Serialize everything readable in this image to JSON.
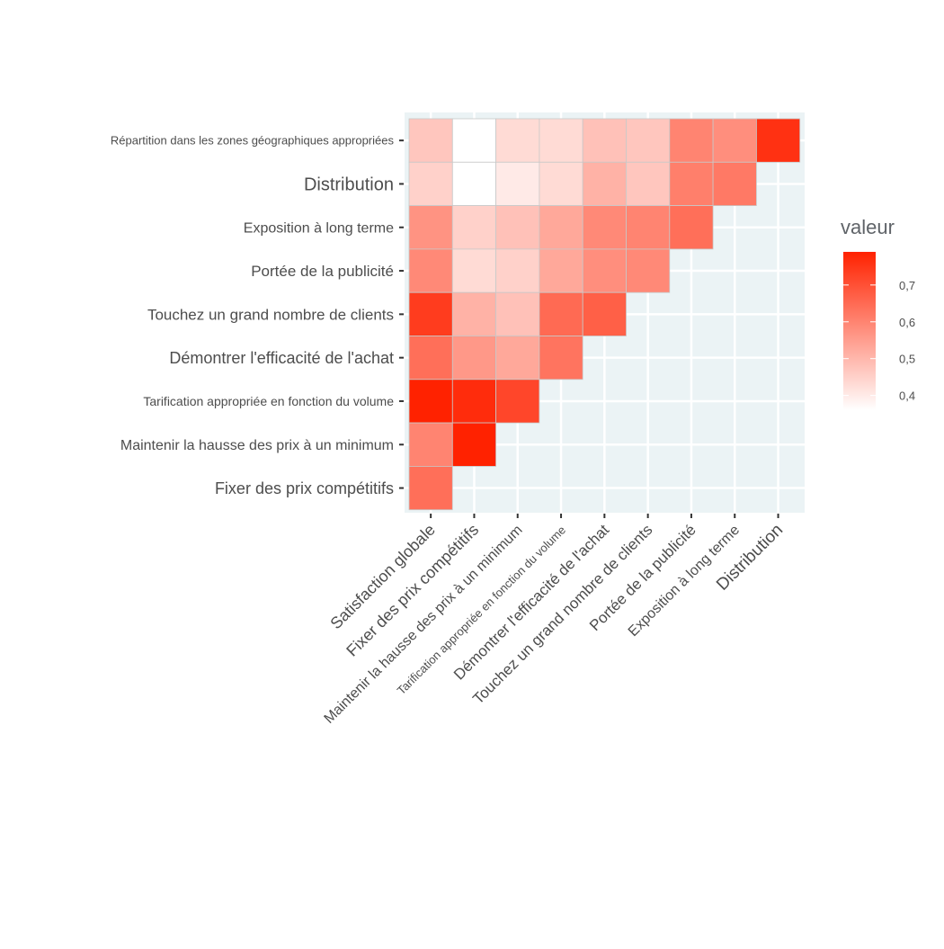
{
  "chart_data": {
    "type": "heatmap",
    "title": "",
    "xlabel": "",
    "ylabel": "",
    "x_categories": [
      "Satisfaction globale",
      "Fixer des prix compétitifs",
      "Maintenir la hausse des prix à un minimum",
      "Tarification appropriée en fonction du volume",
      "Démontrer l'efficacité de l'achat",
      "Touchez un grand nombre de clients",
      "Portée de la publicité",
      "Exposition à long terme",
      "Distribution"
    ],
    "y_categories": [
      "Répartition dans les zones géographiques appropriées",
      "Distribution",
      "Exposition à long terme",
      "Portée de la publicité",
      "Touchez un grand nombre de clients",
      "Démontrer l'efficacité de l'achat",
      "Tarification appropriée en fonction du volume",
      "Maintenir la hausse des prix à un minimum",
      "Fixer des prix compétitifs"
    ],
    "values": [
      [
        0.47,
        0.36,
        0.43,
        0.43,
        0.48,
        0.47,
        0.6,
        0.58,
        0.76
      ],
      [
        0.45,
        0.36,
        0.4,
        0.43,
        0.51,
        0.47,
        0.61,
        0.62
      ],
      [
        0.57,
        0.45,
        0.48,
        0.53,
        0.59,
        0.6,
        0.64
      ],
      [
        0.59,
        0.43,
        0.45,
        0.53,
        0.58,
        0.59
      ],
      [
        0.74,
        0.51,
        0.48,
        0.65,
        0.67
      ],
      [
        0.64,
        0.56,
        0.53,
        0.63
      ],
      [
        0.79,
        0.77,
        0.72
      ],
      [
        0.6,
        0.79
      ],
      [
        0.64
      ]
    ],
    "legend": {
      "title": "valeur",
      "ticks": [
        0.4,
        0.5,
        0.6,
        0.7
      ],
      "tick_labels": [
        "0,4",
        "0,5",
        "0,6",
        "0,7"
      ],
      "range": [
        0.36,
        0.79
      ],
      "low_color": "#FFFFFF",
      "high_color": "#FF2200",
      "placement": "right"
    },
    "panel_background": "#EBF3F5",
    "grid": true
  }
}
